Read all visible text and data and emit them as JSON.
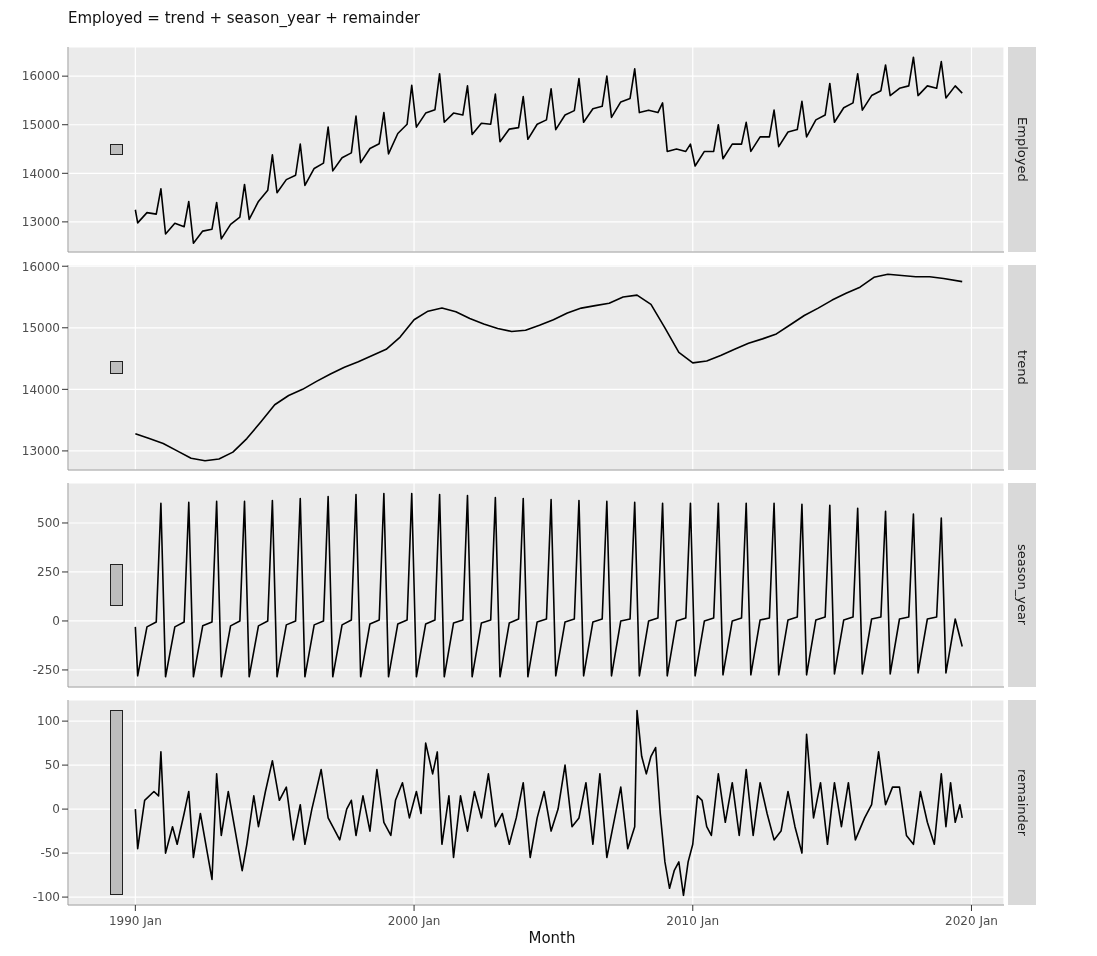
{
  "chart_data": [
    {
      "type": "line",
      "title": "Employed = trend + season_year + remainder",
      "ylabel": "Employed",
      "color": "#000000",
      "grid": true,
      "tick_labels": "y",
      "xlim": [
        "1987-08",
        "2021-03"
      ],
      "xticks": [
        {
          "value": "1990-01",
          "label": null
        },
        {
          "value": "2000-01",
          "label": null
        },
        {
          "value": "2010-01",
          "label": null
        },
        {
          "value": "2020-01",
          "label": null
        }
      ],
      "ylim": [
        12380,
        16600
      ],
      "yticks": [
        13000,
        14000,
        15000,
        16000
      ],
      "x": [
        "1990-01",
        "1990-02",
        "1990-06",
        "1990-10",
        "1990-12",
        "1991-02",
        "1991-06",
        "1991-10",
        "1991-12",
        "1992-02",
        "1992-06",
        "1992-10",
        "1992-12",
        "1993-02",
        "1993-06",
        "1993-10",
        "1993-12",
        "1994-02",
        "1994-06",
        "1994-10",
        "1994-12",
        "1995-02",
        "1995-06",
        "1995-10",
        "1995-12",
        "1996-02",
        "1996-06",
        "1996-10",
        "1996-12",
        "1997-02",
        "1997-06",
        "1997-10",
        "1997-12",
        "1998-02",
        "1998-06",
        "1998-10",
        "1998-12",
        "1999-02",
        "1999-06",
        "1999-10",
        "1999-12",
        "2000-02",
        "2000-06",
        "2000-10",
        "2000-12",
        "2001-02",
        "2001-06",
        "2001-10",
        "2001-12",
        "2002-02",
        "2002-06",
        "2002-10",
        "2002-12",
        "2003-02",
        "2003-06",
        "2003-10",
        "2003-12",
        "2004-02",
        "2004-06",
        "2004-10",
        "2004-12",
        "2005-02",
        "2005-06",
        "2005-10",
        "2005-12",
        "2006-02",
        "2006-06",
        "2006-10",
        "2006-12",
        "2007-02",
        "2007-06",
        "2007-10",
        "2007-12",
        "2008-02",
        "2008-06",
        "2008-10",
        "2008-12",
        "2009-02",
        "2009-06",
        "2009-10",
        "2009-12",
        "2010-02",
        "2010-06",
        "2010-10",
        "2010-12",
        "2011-02",
        "2011-06",
        "2011-10",
        "2011-12",
        "2012-02",
        "2012-06",
        "2012-10",
        "2012-12",
        "2013-02",
        "2013-06",
        "2013-10",
        "2013-12",
        "2014-02",
        "2014-06",
        "2014-10",
        "2014-12",
        "2015-02",
        "2015-06",
        "2015-10",
        "2015-12",
        "2016-02",
        "2016-06",
        "2016-10",
        "2016-12",
        "2017-02",
        "2017-06",
        "2017-10",
        "2017-12",
        "2018-02",
        "2018-06",
        "2018-10",
        "2018-12",
        "2019-02",
        "2019-06",
        "2019-09"
      ],
      "values": [
        13250,
        12980,
        13190,
        13160,
        13680,
        12750,
        12970,
        12900,
        13420,
        12560,
        12810,
        12850,
        13400,
        12650,
        12950,
        13100,
        13770,
        13050,
        13420,
        13650,
        14380,
        13600,
        13870,
        13960,
        14600,
        13750,
        14100,
        14210,
        14950,
        14050,
        14320,
        14420,
        15180,
        14220,
        14510,
        14610,
        15250,
        14400,
        14820,
        15010,
        15810,
        14950,
        15240,
        15310,
        16050,
        15050,
        15240,
        15200,
        15800,
        14800,
        15030,
        15010,
        15630,
        14650,
        14910,
        14940,
        15580,
        14700,
        15010,
        15100,
        15740,
        14900,
        15200,
        15290,
        15950,
        15050,
        15330,
        15380,
        16000,
        15150,
        15470,
        15540,
        16150,
        15250,
        15300,
        15250,
        15450,
        14450,
        14500,
        14450,
        14600,
        14150,
        14450,
        14450,
        15000,
        14300,
        14600,
        14600,
        15050,
        14450,
        14750,
        14750,
        15300,
        14550,
        14850,
        14900,
        15480,
        14750,
        15100,
        15200,
        15850,
        15050,
        15350,
        15450,
        16050,
        15300,
        15600,
        15700,
        16230,
        15600,
        15750,
        15800,
        16390,
        15600,
        15800,
        15750,
        16300,
        15550,
        15800,
        15650
      ]
    },
    {
      "type": "line",
      "ylabel": "trend",
      "color": "#000000",
      "grid": true,
      "tick_labels": "y",
      "xlim": [
        "1987-08",
        "2021-03"
      ],
      "xticks": [
        {
          "value": "1990-01",
          "label": null
        },
        {
          "value": "2000-01",
          "label": null
        },
        {
          "value": "2010-01",
          "label": null
        },
        {
          "value": "2020-01",
          "label": null
        }
      ],
      "ylim": [
        12690,
        16020
      ],
      "yticks": [
        13000,
        14000,
        15000,
        16000
      ],
      "x": [
        "1990-01",
        "1990-07",
        "1991-01",
        "1991-07",
        "1992-01",
        "1992-07",
        "1993-01",
        "1993-07",
        "1994-01",
        "1994-07",
        "1995-01",
        "1995-07",
        "1996-01",
        "1996-07",
        "1997-01",
        "1997-07",
        "1998-01",
        "1998-07",
        "1999-01",
        "1999-07",
        "2000-01",
        "2000-07",
        "2001-01",
        "2001-07",
        "2002-01",
        "2002-07",
        "2003-01",
        "2003-07",
        "2004-01",
        "2004-07",
        "2005-01",
        "2005-07",
        "2006-01",
        "2006-07",
        "2007-01",
        "2007-07",
        "2008-01",
        "2008-07",
        "2009-01",
        "2009-07",
        "2010-01",
        "2010-07",
        "2011-01",
        "2011-07",
        "2012-01",
        "2012-07",
        "2013-01",
        "2013-07",
        "2014-01",
        "2014-07",
        "2015-01",
        "2015-07",
        "2016-01",
        "2016-07",
        "2017-01",
        "2017-07",
        "2018-01",
        "2018-07",
        "2019-01",
        "2019-09"
      ],
      "values": [
        13280,
        13200,
        13120,
        13000,
        12880,
        12840,
        12870,
        12980,
        13200,
        13470,
        13750,
        13900,
        14000,
        14130,
        14250,
        14360,
        14450,
        14550,
        14650,
        14850,
        15130,
        15270,
        15320,
        15260,
        15150,
        15060,
        14990,
        14940,
        14960,
        15040,
        15130,
        15240,
        15320,
        15360,
        15400,
        15500,
        15530,
        15380,
        15000,
        14600,
        14430,
        14460,
        14550,
        14650,
        14750,
        14820,
        14900,
        15050,
        15200,
        15320,
        15450,
        15560,
        15660,
        15820,
        15870,
        15850,
        15830,
        15830,
        15800,
        15750
      ]
    },
    {
      "type": "line",
      "ylabel": "season_year",
      "color": "#000000",
      "grid": true,
      "tick_labels": "y",
      "xlim": [
        "1987-08",
        "2021-03"
      ],
      "xticks": [
        {
          "value": "1990-01",
          "label": null
        },
        {
          "value": "2000-01",
          "label": null
        },
        {
          "value": "2010-01",
          "label": null
        },
        {
          "value": "2020-01",
          "label": null
        }
      ],
      "ylim": [
        -337,
        704
      ],
      "yticks": [
        -250,
        0,
        250,
        500
      ],
      "x": [
        "1990-01",
        "1990-02",
        "1990-06",
        "1990-10",
        "1990-12",
        "1991-02",
        "1991-06",
        "1991-10",
        "1991-12",
        "1992-02",
        "1992-06",
        "1992-10",
        "1992-12",
        "1993-02",
        "1993-06",
        "1993-10",
        "1993-12",
        "1994-02",
        "1994-06",
        "1994-10",
        "1994-12",
        "1995-02",
        "1995-06",
        "1995-10",
        "1995-12",
        "1996-02",
        "1996-06",
        "1996-10",
        "1996-12",
        "1997-02",
        "1997-06",
        "1997-10",
        "1997-12",
        "1998-02",
        "1998-06",
        "1998-10",
        "1998-12",
        "1999-02",
        "1999-06",
        "1999-10",
        "1999-12",
        "2000-02",
        "2000-06",
        "2000-10",
        "2000-12",
        "2001-02",
        "2001-06",
        "2001-10",
        "2001-12",
        "2002-02",
        "2002-06",
        "2002-10",
        "2002-12",
        "2003-02",
        "2003-06",
        "2003-10",
        "2003-12",
        "2004-02",
        "2004-06",
        "2004-10",
        "2004-12",
        "2005-02",
        "2005-06",
        "2005-10",
        "2005-12",
        "2006-02",
        "2006-06",
        "2006-10",
        "2006-12",
        "2007-02",
        "2007-06",
        "2007-10",
        "2007-12",
        "2008-02",
        "2008-06",
        "2008-10",
        "2008-12",
        "2009-02",
        "2009-06",
        "2009-10",
        "2009-12",
        "2010-02",
        "2010-06",
        "2010-10",
        "2010-12",
        "2011-02",
        "2011-06",
        "2011-10",
        "2011-12",
        "2012-02",
        "2012-06",
        "2012-10",
        "2012-12",
        "2013-02",
        "2013-06",
        "2013-10",
        "2013-12",
        "2014-02",
        "2014-06",
        "2014-10",
        "2014-12",
        "2015-02",
        "2015-06",
        "2015-10",
        "2015-12",
        "2016-02",
        "2016-06",
        "2016-10",
        "2016-12",
        "2017-02",
        "2017-06",
        "2017-10",
        "2017-12",
        "2018-02",
        "2018-06",
        "2018-10",
        "2018-12",
        "2019-02",
        "2019-06",
        "2019-09"
      ],
      "values": [
        -30,
        -280,
        -30,
        -5,
        600,
        -285,
        -30,
        -5,
        605,
        -285,
        -25,
        -5,
        610,
        -285,
        -25,
        0,
        610,
        -285,
        -25,
        0,
        615,
        -285,
        -20,
        0,
        625,
        -285,
        -20,
        0,
        635,
        -285,
        -20,
        5,
        645,
        -285,
        -15,
        5,
        650,
        -285,
        -15,
        5,
        650,
        -285,
        -15,
        5,
        645,
        -285,
        -10,
        5,
        640,
        -285,
        -10,
        5,
        630,
        -285,
        -10,
        10,
        625,
        -285,
        -5,
        10,
        620,
        -280,
        -5,
        10,
        615,
        -280,
        -5,
        10,
        610,
        -280,
        0,
        10,
        605,
        -280,
        0,
        15,
        600,
        -280,
        0,
        15,
        600,
        -280,
        0,
        15,
        600,
        -275,
        0,
        15,
        600,
        -275,
        5,
        15,
        600,
        -275,
        5,
        20,
        595,
        -275,
        5,
        20,
        590,
        -270,
        5,
        20,
        575,
        -270,
        10,
        20,
        560,
        -270,
        10,
        20,
        545,
        -265,
        10,
        20,
        525,
        -265,
        10,
        -130
      ]
    },
    {
      "type": "line",
      "ylabel": "remainder",
      "xlabel": "Month",
      "color": "#000000",
      "grid": true,
      "xlim": [
        "1987-08",
        "2021-03"
      ],
      "xticks": [
        {
          "value": "1990-01",
          "label": "1990 Jan"
        },
        {
          "value": "2000-01",
          "label": "2000 Jan"
        },
        {
          "value": "2010-01",
          "label": "2010 Jan"
        },
        {
          "value": "2020-01",
          "label": "2020 Jan"
        }
      ],
      "ylim": [
        -109,
        124
      ],
      "yticks": [
        -100,
        -50,
        0,
        50,
        100
      ],
      "x": [
        "1990-01",
        "1990-02",
        "1990-05",
        "1990-09",
        "1990-11",
        "1990-12",
        "1991-02",
        "1991-05",
        "1991-07",
        "1991-10",
        "1991-12",
        "1992-02",
        "1992-05",
        "1992-08",
        "1992-10",
        "1992-12",
        "1993-02",
        "1993-05",
        "1993-08",
        "1993-11",
        "1994-01",
        "1994-04",
        "1994-06",
        "1994-09",
        "1994-12",
        "1995-03",
        "1995-06",
        "1995-09",
        "1995-12",
        "1996-02",
        "1996-05",
        "1996-09",
        "1996-12",
        "1997-02",
        "1997-05",
        "1997-08",
        "1997-10",
        "1997-12",
        "1998-03",
        "1998-06",
        "1998-09",
        "1998-12",
        "1999-03",
        "1999-05",
        "1999-08",
        "1999-11",
        "2000-02",
        "2000-04",
        "2000-06",
        "2000-09",
        "2000-11",
        "2001-01",
        "2001-04",
        "2001-06",
        "2001-09",
        "2001-12",
        "2002-03",
        "2002-06",
        "2002-09",
        "2002-12",
        "2003-03",
        "2003-06",
        "2003-09",
        "2003-12",
        "2004-03",
        "2004-06",
        "2004-09",
        "2004-12",
        "2005-03",
        "2005-06",
        "2005-09",
        "2005-12",
        "2006-03",
        "2006-06",
        "2006-09",
        "2006-12",
        "2007-03",
        "2007-06",
        "2007-09",
        "2007-12",
        "2008-01",
        "2008-03",
        "2008-05",
        "2008-07",
        "2008-09",
        "2008-11",
        "2009-01",
        "2009-03",
        "2009-05",
        "2009-07",
        "2009-09",
        "2009-11",
        "2010-01",
        "2010-03",
        "2010-05",
        "2010-07",
        "2010-09",
        "2010-12",
        "2011-03",
        "2011-06",
        "2011-09",
        "2011-12",
        "2012-03",
        "2012-06",
        "2012-09",
        "2012-12",
        "2013-03",
        "2013-06",
        "2013-09",
        "2013-12",
        "2014-02",
        "2014-05",
        "2014-08",
        "2014-11",
        "2015-02",
        "2015-05",
        "2015-08",
        "2015-11",
        "2016-03",
        "2016-06",
        "2016-09",
        "2016-12",
        "2017-03",
        "2017-06",
        "2017-09",
        "2017-12",
        "2018-03",
        "2018-06",
        "2018-09",
        "2018-12",
        "2019-02",
        "2019-04",
        "2019-06",
        "2019-08",
        "2019-09"
      ],
      "values": [
        0,
        -45,
        10,
        20,
        15,
        65,
        -50,
        -20,
        -40,
        -5,
        20,
        -55,
        -5,
        -50,
        -80,
        40,
        -30,
        20,
        -25,
        -70,
        -40,
        15,
        -20,
        20,
        55,
        10,
        25,
        -35,
        5,
        -40,
        0,
        45,
        -10,
        -20,
        -35,
        0,
        10,
        -30,
        15,
        -25,
        45,
        -15,
        -30,
        10,
        30,
        -10,
        20,
        -5,
        75,
        40,
        65,
        -40,
        15,
        -55,
        15,
        -25,
        20,
        -10,
        40,
        -20,
        -5,
        -40,
        -10,
        30,
        -55,
        -10,
        20,
        -25,
        0,
        50,
        -20,
        -10,
        30,
        -40,
        40,
        -55,
        -15,
        25,
        -45,
        -20,
        112,
        60,
        40,
        60,
        70,
        -5,
        -60,
        -90,
        -70,
        -60,
        -98,
        -60,
        -40,
        15,
        10,
        -20,
        -30,
        40,
        -15,
        30,
        -30,
        45,
        -30,
        30,
        -5,
        -35,
        -25,
        20,
        -20,
        -50,
        85,
        -10,
        30,
        -40,
        30,
        -20,
        30,
        -35,
        -10,
        5,
        65,
        5,
        25,
        25,
        -30,
        -40,
        20,
        -15,
        -40,
        40,
        -20,
        30,
        -15,
        5,
        -10
      ]
    }
  ]
}
